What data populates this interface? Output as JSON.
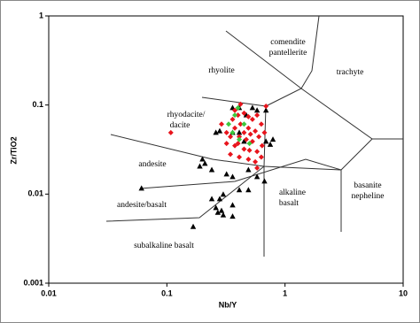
{
  "chart_data": {
    "type": "scatter",
    "xlabel": "Nb/Y",
    "ylabel": "Zr/TiO2",
    "xscale": "log",
    "yscale": "log",
    "xlim": [
      0.01,
      10
    ],
    "ylim": [
      0.001,
      1
    ],
    "xticks": [
      0.01,
      0.1,
      1,
      10
    ],
    "yticks": [
      0.001,
      0.01,
      0.1,
      1
    ],
    "grid": false,
    "annotations": [
      "comendite",
      "pantellerite",
      "rhyolite",
      "trachyte",
      "rhyodacite/",
      "dacite",
      "andesite",
      "andesite/basalt",
      "alkaline",
      "basalt",
      "basanite",
      "nepheline",
      "subalkaline basalt"
    ],
    "series": [
      {
        "color": "#000000",
        "marker": "triangle",
        "x": [
          0.36,
          0.41,
          0.53,
          0.58,
          0.47,
          0.69,
          0.28,
          0.26,
          0.36,
          0.41,
          0.45,
          0.69,
          0.75,
          0.79,
          0.2,
          0.21,
          0.19,
          0.24,
          0.49,
          0.32,
          0.36,
          0.58,
          0.67,
          0.061,
          0.41,
          0.49,
          0.3,
          0.24,
          0.28,
          0.26,
          0.36,
          0.29,
          0.27,
          0.167,
          0.3,
          0.36
        ],
        "values": [
          0.093,
          0.093,
          0.093,
          0.087,
          0.077,
          0.087,
          0.051,
          0.049,
          0.049,
          0.049,
          0.039,
          0.039,
          0.036,
          0.041,
          0.0246,
          0.022,
          0.0205,
          0.0187,
          0.0187,
          0.0167,
          0.0156,
          0.0156,
          0.0139,
          0.0116,
          0.0111,
          0.0111,
          0.0099,
          0.0088,
          0.0088,
          0.007,
          0.0075,
          0.0065,
          0.0062,
          0.0043,
          0.0058,
          0.0056
        ]
      },
      {
        "color": "#e8141c",
        "marker": "diamond",
        "x": [
          0.36,
          0.4,
          0.45,
          0.49,
          0.53,
          0.58,
          0.63,
          0.42,
          0.376,
          0.49,
          0.56,
          0.345,
          0.41,
          0.47,
          0.53,
          0.6,
          0.67,
          0.32,
          0.376,
          0.45,
          0.5,
          0.58,
          0.345,
          0.41,
          0.49,
          0.56,
          0.63,
          0.58,
          0.29,
          0.69,
          0.42,
          0.108,
          0.4,
          0.51,
          0.45,
          0.376,
          0.32,
          0.64
        ],
        "values": [
          0.069,
          0.077,
          0.081,
          0.074,
          0.069,
          0.077,
          0.061,
          0.061,
          0.055,
          0.055,
          0.051,
          0.044,
          0.044,
          0.041,
          0.039,
          0.044,
          0.049,
          0.037,
          0.035,
          0.032,
          0.031,
          0.03,
          0.028,
          0.026,
          0.0246,
          0.023,
          0.026,
          0.0196,
          0.061,
          0.097,
          0.102,
          0.049,
          0.037,
          0.047,
          0.049,
          0.087,
          0.049,
          0.035
        ]
      },
      {
        "color": "#3cc83c",
        "marker": "diamond",
        "x": [
          0.376,
          0.333,
          0.36,
          0.41,
          0.45,
          0.5,
          0.4
        ],
        "values": [
          0.077,
          0.061,
          0.049,
          0.041,
          0.061,
          0.037,
          0.093
        ]
      }
    ]
  }
}
